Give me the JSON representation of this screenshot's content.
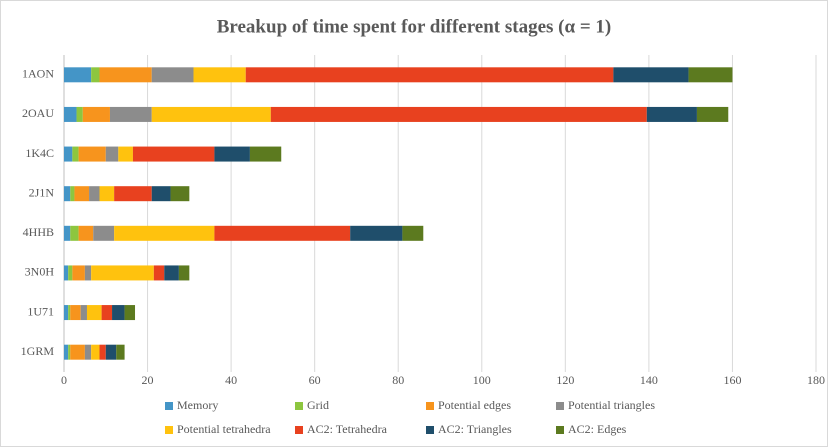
{
  "chart_data": {
    "type": "stacked_barh",
    "title": "Breakup of time spent  for different stages (α = 1)",
    "categories": [
      "1AON",
      "2OAU",
      "1K4C",
      "2J1N",
      "4HHB",
      "3N0H",
      "1U71",
      "1GRM"
    ],
    "series": [
      {
        "name": "Memory",
        "color": "#4495c7",
        "values": [
          6.5,
          3,
          2,
          1.5,
          1.5,
          1,
          1,
          1
        ]
      },
      {
        "name": "Grid",
        "color": "#8dc63f",
        "values": [
          2,
          1.5,
          1.5,
          1,
          2,
          1,
          0.5,
          0.5
        ]
      },
      {
        "name": "Potential edges",
        "color": "#f7941d",
        "values": [
          12.5,
          6.5,
          6.5,
          3.5,
          3.5,
          3,
          2.5,
          3.5
        ]
      },
      {
        "name": "Potential triangles",
        "color": "#8c8c8c",
        "values": [
          10,
          10,
          3,
          2.5,
          5,
          1.5,
          1.5,
          1.5
        ]
      },
      {
        "name": "Potential tetrahedra",
        "color": "#ffc20e",
        "values": [
          12.5,
          28.5,
          3.5,
          3.5,
          24,
          15,
          3.5,
          2
        ]
      },
      {
        "name": "AC2: Tetrahedra",
        "color": "#e8411f",
        "values": [
          88,
          90,
          19.5,
          9,
          32.5,
          2.5,
          2.5,
          1.5
        ]
      },
      {
        "name": "AC2: Triangles",
        "color": "#1f4e6b",
        "values": [
          18,
          12,
          8.5,
          4.5,
          12.5,
          3.5,
          3,
          2.5
        ]
      },
      {
        "name": "AC2: Edges",
        "color": "#5c7a1f",
        "values": [
          10.5,
          7.5,
          7.5,
          4.5,
          5,
          2.5,
          2.5,
          2
        ]
      }
    ],
    "xlim": [
      0,
      180
    ],
    "xticks": [
      0,
      20,
      40,
      60,
      80,
      100,
      120,
      140,
      160,
      180
    ],
    "grid": true
  }
}
